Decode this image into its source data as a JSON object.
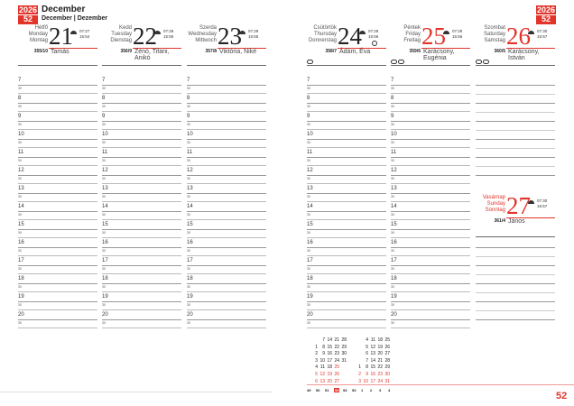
{
  "header": {
    "year": "2026",
    "week": "52",
    "month": "December",
    "month_translations": "December | Dezember"
  },
  "days": [
    {
      "names": [
        "Hétfő",
        "Monday",
        "Montag"
      ],
      "day": "21",
      "sunrise": "07:27",
      "sunset": "15:54",
      "daynum": "355/10",
      "nameday": "Tamás",
      "holiday": false
    },
    {
      "names": [
        "Kedd",
        "Tuesday",
        "Dienstag"
      ],
      "day": "22",
      "sunrise": "07:28",
      "sunset": "15:55",
      "daynum": "356/9",
      "nameday": "Zénó, Tifani, Anikó",
      "holiday": false
    },
    {
      "names": [
        "Szerda",
        "Wednesday",
        "Mittwoch"
      ],
      "day": "23",
      "sunrise": "07:29",
      "sunset": "15:55",
      "daynum": "357/8",
      "nameday": "Viktória, Niké",
      "holiday": false
    },
    {
      "names": [
        "Csütörtök",
        "Thursday",
        "Donnerstag"
      ],
      "day": "24",
      "sunrise": "07:29",
      "sunset": "15:56",
      "daynum": "358/7",
      "nameday": "Ádám, Éva",
      "holiday": false,
      "moon": "full-moon"
    },
    {
      "names": [
        "Péntek",
        "Friday",
        "Freitag"
      ],
      "day": "25",
      "sunrise": "07:29",
      "sunset": "15:56",
      "daynum": "359/6",
      "nameday": "Karácsony, Eugénia",
      "holiday": true
    },
    {
      "names": [
        "Szombat",
        "Saturday",
        "Samstag"
      ],
      "day": "26",
      "sunrise": "07:30",
      "sunset": "15:57",
      "daynum": "360/5",
      "nameday": "Karácsony, István",
      "holiday": true
    },
    {
      "names": [
        "Vasárnap",
        "Sunday",
        "Sonntag"
      ],
      "day": "27",
      "sunrise": "07:30",
      "sunset": "15:57",
      "daynum": "361/4",
      "nameday": "János",
      "holiday": true
    }
  ],
  "hours": [
    "7",
    "8",
    "9",
    "10",
    "11",
    "12",
    "13",
    "14",
    "15",
    "16",
    "17",
    "18",
    "19",
    "20"
  ],
  "half_label": "30",
  "mini_calendar": {
    "december": [
      [
        "",
        "7",
        "14",
        "21",
        "28"
      ],
      [
        "1",
        "8",
        "15",
        "22",
        "29"
      ],
      [
        "2",
        "9",
        "16",
        "23",
        "30"
      ],
      [
        "3",
        "10",
        "17",
        "24",
        "31"
      ],
      [
        "4",
        "11",
        "18",
        "25",
        ""
      ],
      [
        "5",
        "12",
        "19",
        "26",
        ""
      ],
      [
        "6",
        "13",
        "20",
        "27",
        ""
      ]
    ],
    "january": [
      [
        "",
        "4",
        "11",
        "18",
        "25"
      ],
      [
        "",
        "5",
        "12",
        "19",
        "26"
      ],
      [
        "",
        "6",
        "13",
        "20",
        "27"
      ],
      [
        "",
        "7",
        "14",
        "21",
        "28"
      ],
      [
        "1",
        "8",
        "15",
        "22",
        "29"
      ],
      [
        "2",
        "9",
        "16",
        "23",
        "30"
      ],
      [
        "3",
        "10",
        "17",
        "24",
        "31"
      ]
    ],
    "weeks": [
      "49",
      "50",
      "51",
      "52",
      "53",
      "53",
      "1",
      "2",
      "3",
      "4"
    ],
    "current_week": "52"
  },
  "page_number": "52",
  "accent": "#e2342b"
}
